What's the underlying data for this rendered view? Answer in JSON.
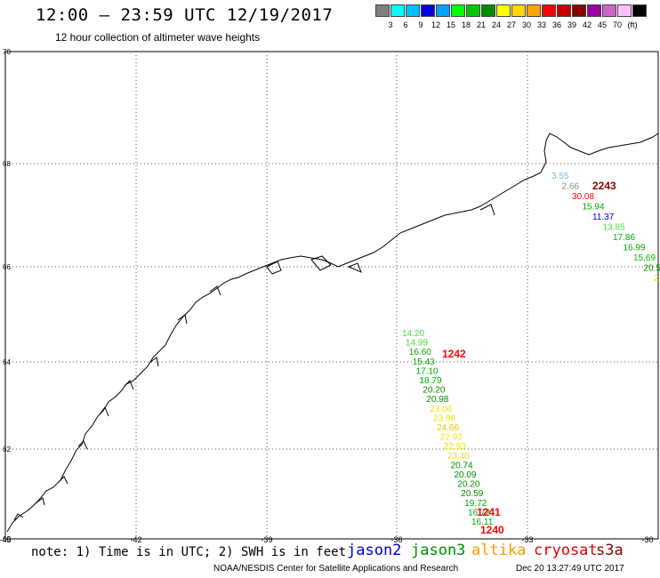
{
  "title": "12:00 – 23:59 UTC 12/19/2017",
  "subtitle": "12 hour collection of altimeter wave heights",
  "colorbar": {
    "unit": "(ft)",
    "colors": [
      "#7f7f7f",
      "#00ffff",
      "#00c0ff",
      "#0000e0",
      "#00a0ff",
      "#00ff00",
      "#00c800",
      "#008c00",
      "#ffff00",
      "#ffd700",
      "#ffa500",
      "#ff0000",
      "#c80000",
      "#8b0000",
      "#9900a0",
      "#cc66cc",
      "#ffc0ff",
      "#000000"
    ],
    "labels": [
      "3",
      "6",
      "9",
      "12",
      "15",
      "18",
      "21",
      "24",
      "27",
      "30",
      "33",
      "36",
      "39",
      "42",
      "45",
      "70",
      "(ft)"
    ]
  },
  "axes": {
    "x_ticks": [
      "-45",
      "-42",
      "-39",
      "-36",
      "-33",
      "-30"
    ],
    "y_ticks": [
      "60",
      "62",
      "64",
      "66",
      "68",
      "70"
    ]
  },
  "tracks": [
    {
      "id": "east",
      "time_label": "2243",
      "time_color": "#8b0000",
      "points": [
        {
          "v": "3.55",
          "c": "#7fb3d9"
        },
        {
          "v": "2.66",
          "c": "#8c8c8c"
        },
        {
          "v": "30.08",
          "c": "#ff0000"
        },
        {
          "v": "15.94",
          "c": "#00aa00"
        },
        {
          "v": "11.37",
          "c": "#0000c8"
        },
        {
          "v": "13.85",
          "c": "#44dd44"
        },
        {
          "v": "17.86",
          "c": "#00aa00"
        },
        {
          "v": "16.99",
          "c": "#00aa00"
        },
        {
          "v": "15.69",
          "c": "#00bb00"
        },
        {
          "v": "20.5",
          "c": "#008c00"
        },
        {
          "v": "2",
          "c": "#e8e800"
        }
      ]
    },
    {
      "id": "south",
      "time_label": "1242",
      "time_color": "#ff0000",
      "time_label2": "1241",
      "time_label3": "1240",
      "points": [
        {
          "v": "14.20",
          "c": "#44dd44"
        },
        {
          "v": "14.99",
          "c": "#44dd44"
        },
        {
          "v": "16.60",
          "c": "#00aa00"
        },
        {
          "v": "15.43",
          "c": "#00aa00"
        },
        {
          "v": "17.10",
          "c": "#00aa00"
        },
        {
          "v": "18.79",
          "c": "#00aa00"
        },
        {
          "v": "20.20",
          "c": "#008c00"
        },
        {
          "v": "20.98",
          "c": "#008c00"
        },
        {
          "v": "23.06",
          "c": "#e8e800"
        },
        {
          "v": "23.98",
          "c": "#e8e800"
        },
        {
          "v": "24.66",
          "c": "#e8c800"
        },
        {
          "v": "22.92",
          "c": "#e8e800"
        },
        {
          "v": "22.93",
          "c": "#e8e800"
        },
        {
          "v": "23.40",
          "c": "#e8e800"
        },
        {
          "v": "20.74",
          "c": "#008c00"
        },
        {
          "v": "20.09",
          "c": "#008c00"
        },
        {
          "v": "20.20",
          "c": "#008c00"
        },
        {
          "v": "20.59",
          "c": "#008c00"
        },
        {
          "v": "19.72",
          "c": "#00aa00"
        },
        {
          "v": "16.72",
          "c": "#00aa00"
        },
        {
          "v": "16.11",
          "c": "#00aa00"
        }
      ]
    }
  ],
  "footer": {
    "note": "note: 1) Time is in UTC; 2) SWH is in feet",
    "satellites": [
      {
        "name": "jason2",
        "color": "#0000d0"
      },
      {
        "name": "jason3",
        "color": "#008c00"
      },
      {
        "name": "altika",
        "color": "#ff9900"
      },
      {
        "name": "cryosat",
        "color": "#e00000"
      },
      {
        "name": "s3a",
        "color": "#8b0000"
      }
    ],
    "credit": "NOAA/NESDIS Center for Satellite Applications and Research",
    "timestamp": "Dec 20 13:27:49 UTC 2017"
  }
}
